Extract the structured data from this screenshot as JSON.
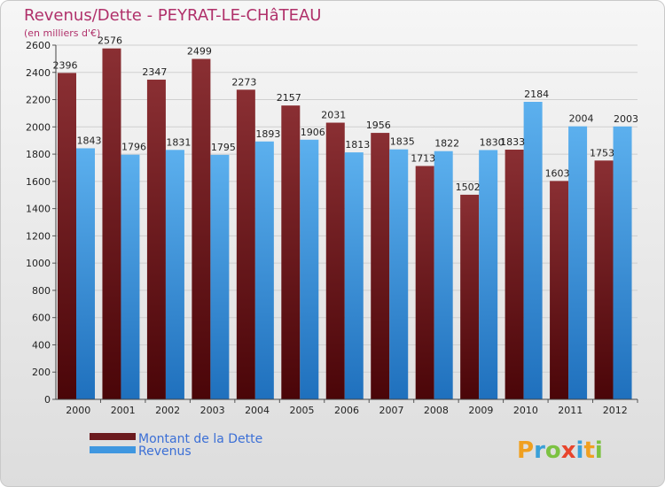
{
  "chart_data": {
    "type": "bar",
    "title": "Revenus/Dette - PEYRAT-LE-CHâTEAU",
    "subtitle": "(en milliers d'€)",
    "categories": [
      "2000",
      "2001",
      "2002",
      "2003",
      "2004",
      "2005",
      "2006",
      "2007",
      "2008",
      "2009",
      "2010",
      "2011",
      "2012"
    ],
    "series": [
      {
        "name": "Montant de la Dette",
        "color": "#6b1a1e",
        "values": [
          2396,
          2576,
          2347,
          2499,
          2273,
          2157,
          2031,
          1956,
          1713,
          1502,
          1833,
          1603,
          1753
        ]
      },
      {
        "name": "Revenus",
        "color": "#3f97e0",
        "values": [
          1843,
          1796,
          1831,
          1795,
          1893,
          1906,
          1813,
          1835,
          1822,
          1830,
          2184,
          2004,
          2003
        ]
      }
    ],
    "ylim": [
      0,
      2600
    ],
    "yticks": [
      0,
      200,
      400,
      600,
      800,
      1000,
      1200,
      1400,
      1600,
      1800,
      2000,
      2200,
      2400,
      2600
    ],
    "grid": true,
    "legend_position": "bottom-left"
  },
  "logo": {
    "letters": [
      "P",
      "r",
      "o",
      "x",
      "i",
      "t",
      "i"
    ],
    "colors": [
      "#f0a020",
      "#3aa0d8",
      "#7cc242",
      "#e8452c",
      "#3aa0d8",
      "#f0a020",
      "#7cc242"
    ]
  }
}
